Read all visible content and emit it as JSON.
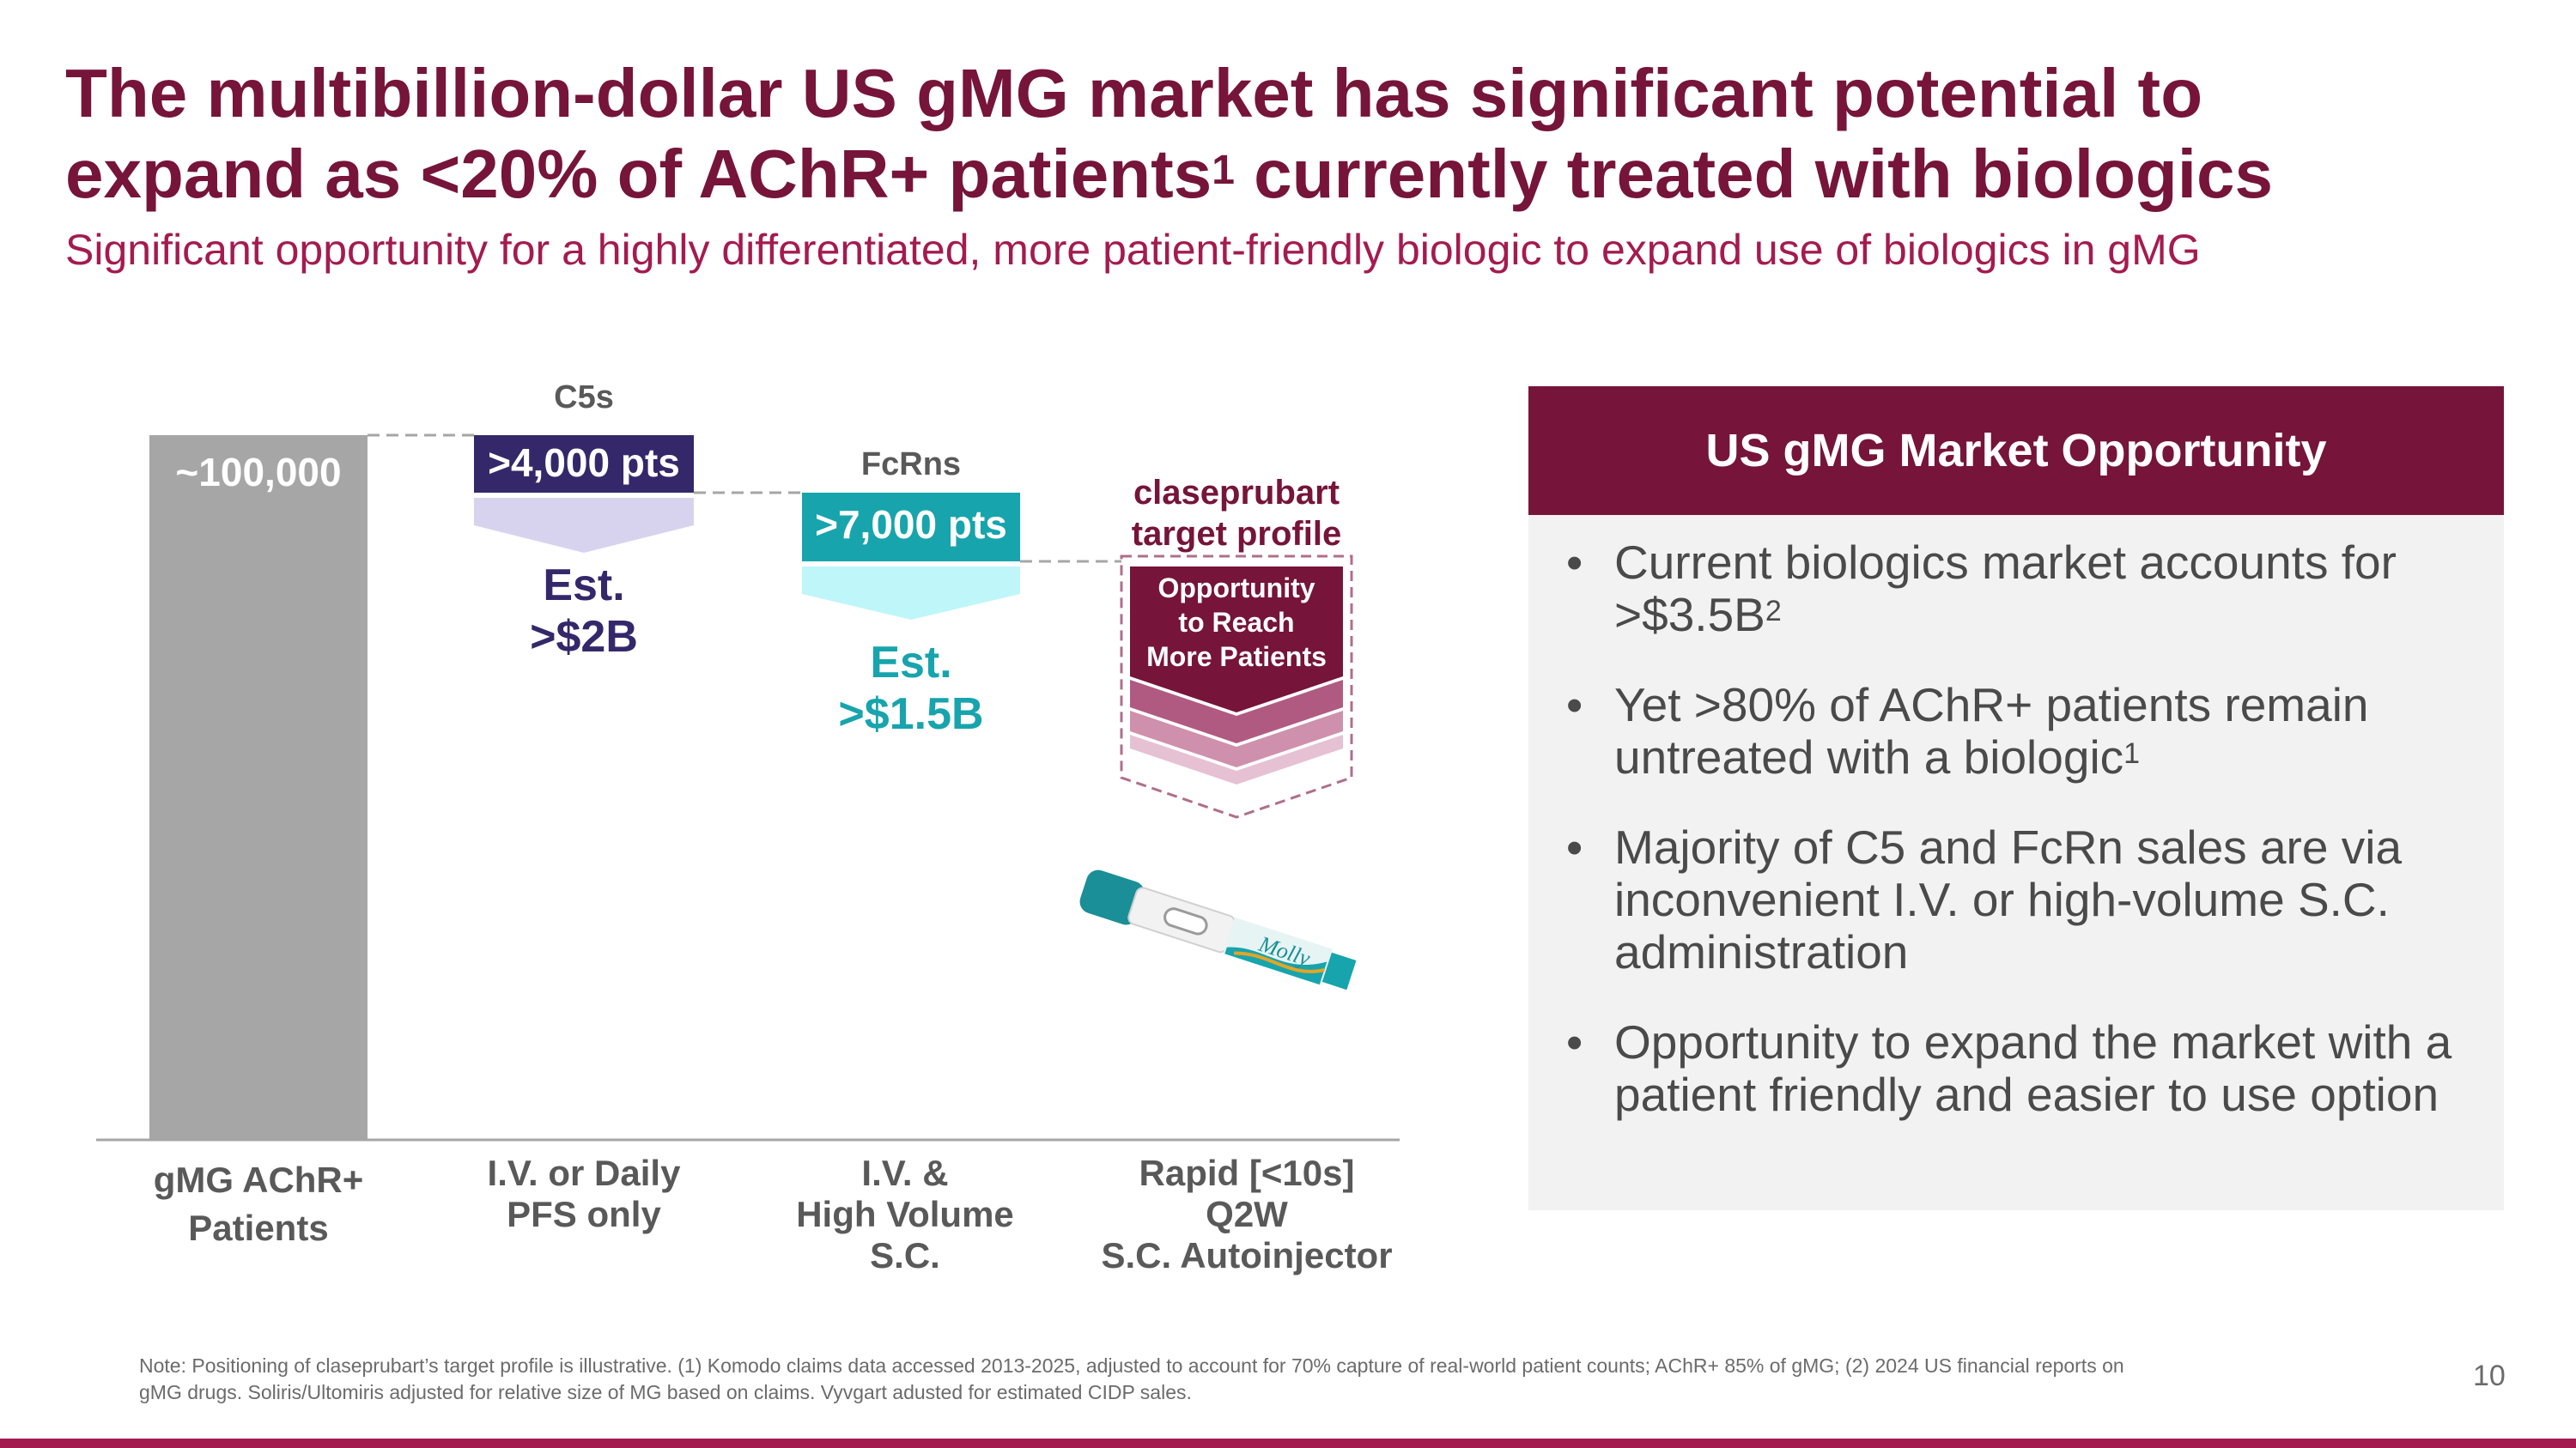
{
  "title": {
    "line1": "The multibillion-dollar US gMG market has significant potential to",
    "line2_pre": "expand as <20% of AChR+ patients",
    "line2_sup": "1",
    "line2_post": " currently treated with biologics"
  },
  "subtitle": "Significant opportunity for a highly differentiated, more patient-friendly biologic to expand use of biologics in gMG",
  "chart": {
    "total_label": "~100,000",
    "c5s_header": "C5s",
    "c5s_pts": ">4,000 pts",
    "c5s_est_line1": "Est.",
    "c5s_est_line2": ">$2B",
    "fcrns_header": "FcRns",
    "fcrns_pts": ">7,000 pts",
    "fcrns_est_line1": "Est.",
    "fcrns_est_line2": ">$1.5B",
    "target_line1": "claseprubart",
    "target_line2": "target profile",
    "opportunity_line1": "Opportunity",
    "opportunity_line2": "to Reach",
    "opportunity_line3": "More Patients",
    "autoinjector_brand": "Molly",
    "categories": [
      {
        "line1": "gMG AChR+",
        "line2": "Patients",
        "line3": ""
      },
      {
        "line1": "I.V. or Daily",
        "line2": "PFS only",
        "line3": ""
      },
      {
        "line1": "I.V. &",
        "line2": "High Volume",
        "line3": "S.C."
      },
      {
        "line1": "Rapid [<10s]",
        "line2": "Q2W",
        "line3": "S.C. Autoinjector"
      }
    ],
    "colors": {
      "total_bar": "#a6a6a6",
      "c5s": "#34286b",
      "c5s_light": "#d7d3ee",
      "fcrns": "#17a4ad",
      "fcrns_light": "#bff6fa",
      "brand": "#761439"
    }
  },
  "panel": {
    "header": "US gMG Market Opportunity",
    "bullets": [
      {
        "text": "Current biologics market accounts for >$3.5B",
        "sup": "2"
      },
      {
        "text": "Yet >80% of AChR+ patients remain untreated with a biologic",
        "sup": "1"
      },
      {
        "text": "Majority of C5 and FcRn sales are via inconvenient I.V. or high-volume S.C. administration",
        "sup": ""
      },
      {
        "text": "Opportunity to expand the market with a patient friendly and easier to use option",
        "sup": ""
      }
    ]
  },
  "footnote": {
    "line1": "Note: Positioning of claseprubart’s target profile is illustrative. (1) Komodo claims data accessed 2013-2025, adjusted to account for 70% capture of real-world patient counts; AChR+ 85% of gMG; (2) 2024 US financial reports on",
    "line2": "gMG drugs. Soliris/Ultomiris adjusted for relative size of MG based on claims. Vyvgart adusted for estimated CIDP sales."
  },
  "page_number": "10"
}
